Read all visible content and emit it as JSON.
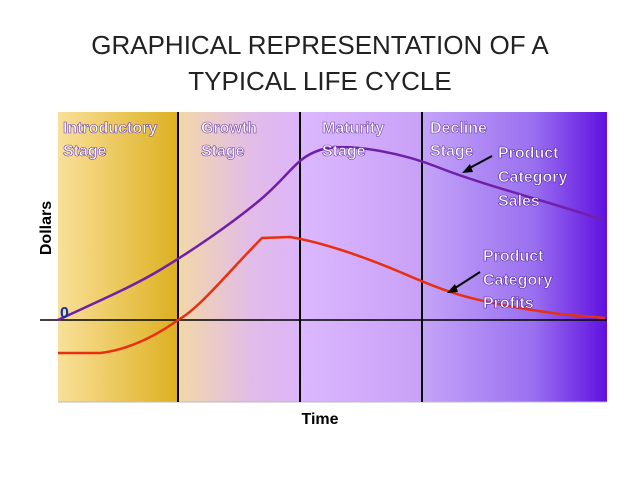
{
  "title": [
    "GRAPHICAL REPRESENTATION OF A",
    "TYPICAL LIFE CYCLE"
  ],
  "stages": [
    {
      "lines": [
        "Introductory",
        "Stage"
      ]
    },
    {
      "lines": [
        "Growth",
        "Stage"
      ]
    },
    {
      "lines": [
        "Maturity",
        "Stage"
      ]
    },
    {
      "lines": [
        "Decline",
        "Stage"
      ]
    }
  ],
  "curves": [
    {
      "lines": [
        "Product",
        "Category",
        "Sales"
      ]
    },
    {
      "lines": [
        "Product",
        "Category",
        "Profits"
      ]
    }
  ],
  "axes": {
    "y_label": "Dollars",
    "x_label": "Time",
    "origin_label": "0"
  }
}
